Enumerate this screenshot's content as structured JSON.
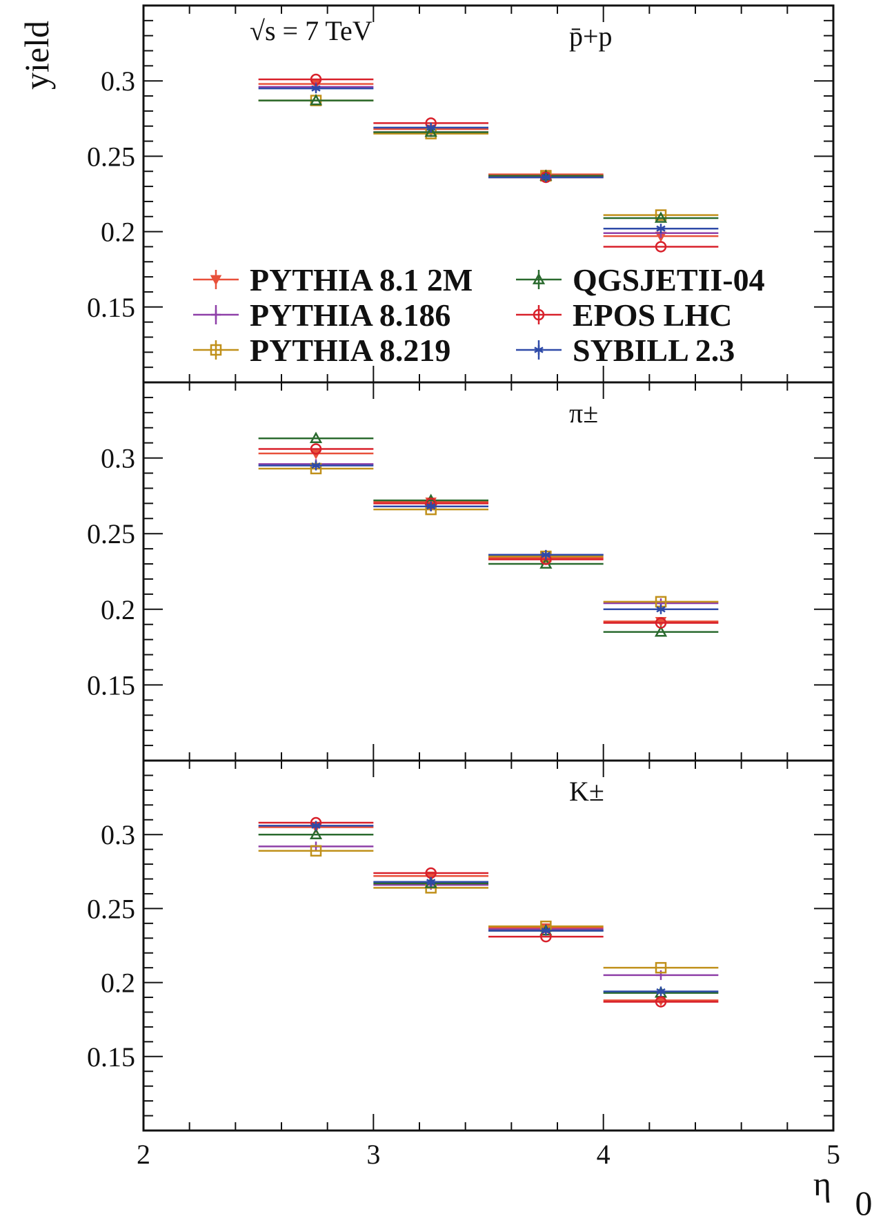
{
  "chart_data": {
    "type": "scatter",
    "annotation": "√s = 7 TeV",
    "ylabel": "yield",
    "xlabel": "η",
    "x_corner_label": "0",
    "xlim": [
      2,
      5
    ],
    "ylim": [
      0.1,
      0.35
    ],
    "x_ticks": [
      "2",
      "3",
      "4",
      "5"
    ],
    "y_ticks": [
      "0.15",
      "0.2",
      "0.25",
      "0.3"
    ],
    "x_bins": [
      [
        2.5,
        3.0
      ],
      [
        3.0,
        3.5
      ],
      [
        3.5,
        4.0
      ],
      [
        4.0,
        4.5
      ]
    ],
    "legend": [
      {
        "name": "PYTHIA 8.1 2M",
        "color": "#e8503a",
        "marker": "triangle-down"
      },
      {
        "name": "QGSJETII-04",
        "color": "#2a6a2e",
        "marker": "triangle-up"
      },
      {
        "name": "PYTHIA 8.186",
        "color": "#8e3fa8",
        "marker": "cross"
      },
      {
        "name": "EPOS LHC",
        "color": "#d8202a",
        "marker": "circle"
      },
      {
        "name": "PYTHIA 8.219",
        "color": "#c0901a",
        "marker": "square"
      },
      {
        "name": "SYBILL 2.3",
        "color": "#2e4aa8",
        "marker": "star"
      }
    ],
    "panels": [
      {
        "label": "p̄+p",
        "series": [
          {
            "name": "PYTHIA 8.1 2M",
            "values": [
              0.298,
              0.268,
              0.238,
              0.197
            ]
          },
          {
            "name": "PYTHIA 8.186",
            "values": [
              0.296,
              0.266,
              0.237,
              0.199
            ]
          },
          {
            "name": "PYTHIA 8.219",
            "values": [
              0.287,
              0.265,
              0.237,
              0.211
            ]
          },
          {
            "name": "QGSJETII-04",
            "values": [
              0.287,
              0.266,
              0.237,
              0.209
            ]
          },
          {
            "name": "EPOS LHC",
            "values": [
              0.301,
              0.272,
              0.236,
              0.19
            ]
          },
          {
            "name": "SYBILL 2.3",
            "values": [
              0.295,
              0.269,
              0.236,
              0.202
            ]
          }
        ]
      },
      {
        "label": "π±",
        "series": [
          {
            "name": "PYTHIA 8.1 2M",
            "values": [
              0.303,
              0.271,
              0.234,
              0.192
            ]
          },
          {
            "name": "PYTHIA 8.186",
            "values": [
              0.296,
              0.268,
              0.236,
              0.204
            ]
          },
          {
            "name": "PYTHIA 8.219",
            "values": [
              0.293,
              0.266,
              0.235,
              0.205
            ]
          },
          {
            "name": "QGSJETII-04",
            "values": [
              0.313,
              0.272,
              0.23,
              0.185
            ]
          },
          {
            "name": "EPOS LHC",
            "values": [
              0.306,
              0.27,
              0.233,
              0.191
            ]
          },
          {
            "name": "SYBILL 2.3",
            "values": [
              0.295,
              0.268,
              0.236,
              0.2
            ]
          }
        ]
      },
      {
        "label": "K±",
        "series": [
          {
            "name": "PYTHIA 8.1 2M",
            "values": [
              0.305,
              0.272,
              0.237,
              0.188
            ]
          },
          {
            "name": "PYTHIA 8.186",
            "values": [
              0.292,
              0.266,
              0.236,
              0.205
            ]
          },
          {
            "name": "PYTHIA 8.219",
            "values": [
              0.289,
              0.264,
              0.238,
              0.21
            ]
          },
          {
            "name": "QGSJETII-04",
            "values": [
              0.3,
              0.267,
              0.235,
              0.193
            ]
          },
          {
            "name": "EPOS LHC",
            "values": [
              0.308,
              0.274,
              0.231,
              0.187
            ]
          },
          {
            "name": "SYBILL 2.3",
            "values": [
              0.306,
              0.268,
              0.235,
              0.194
            ]
          }
        ]
      }
    ]
  }
}
